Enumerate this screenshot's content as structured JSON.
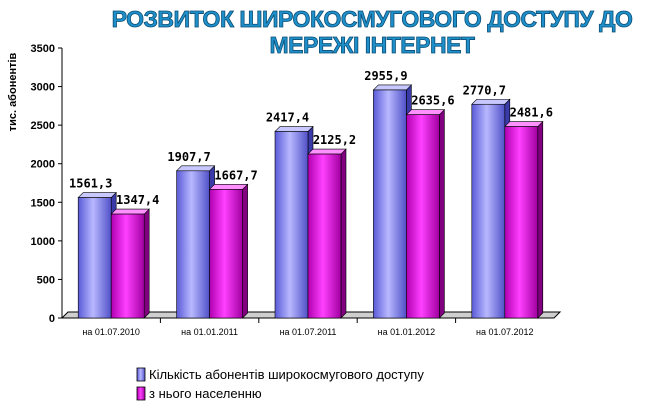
{
  "chart_data": {
    "type": "bar",
    "title_lines": [
      "РОЗВИТОК ШИРОКОСМУГОВОГО ДОСТУПУ ДО",
      "МЕРЕЖІ ІНТЕРНЕТ"
    ],
    "ylabel": "тис. абонентів",
    "xlabel": "",
    "ylim": [
      0,
      3500
    ],
    "yticks": [
      "0",
      "500",
      "1000",
      "1500",
      "2000",
      "2500",
      "3000",
      "3500"
    ],
    "grid": false,
    "legend_position": "bottom",
    "categories": [
      "на 01.07.2010",
      "на 01.01.2011",
      "на 01.07.2011",
      "на 01.01.2012",
      "на 01.07.2012"
    ],
    "series": [
      {
        "name": "Кількість абонентів широкосмугового доступу",
        "values": [
          1561.3,
          1907.7,
          2417.4,
          2955.9,
          2770.7
        ],
        "labels": [
          "1561,3",
          "1907,7",
          "2417,4",
          "2955,9",
          "2770,7"
        ],
        "color": "#8080ff"
      },
      {
        "name": "з нього населенню",
        "values": [
          1347.4,
          1667.7,
          2125.2,
          2635.6,
          2481.6
        ],
        "labels": [
          "1347,4",
          "1667,7",
          "2125,2",
          "2635,6",
          "2481,6"
        ],
        "color": "#ff00ff"
      }
    ]
  }
}
